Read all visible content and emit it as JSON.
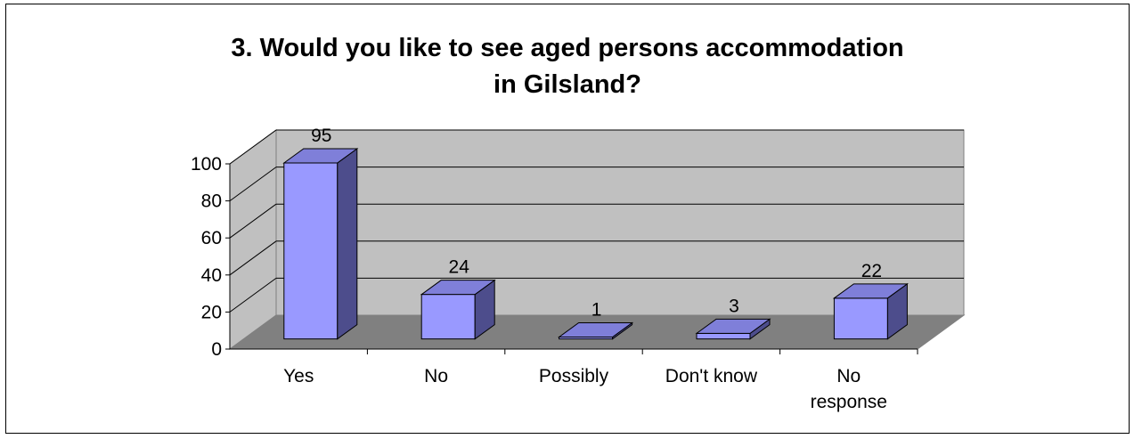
{
  "chart_data": {
    "type": "bar",
    "title_lines": [
      "3.  Would you like to see aged persons accommodation",
      "in Gilsland?"
    ],
    "categories": [
      "Yes",
      "No",
      "Possibly",
      "Don't know",
      "No response"
    ],
    "category_label_lines": [
      [
        "Yes"
      ],
      [
        "No"
      ],
      [
        "Possibly"
      ],
      [
        "Don't know"
      ],
      [
        "No",
        "response"
      ]
    ],
    "values": [
      95,
      24,
      1,
      3,
      22
    ],
    "data_labels": [
      "95",
      "24",
      "1",
      "3",
      "22"
    ],
    "ylim": [
      0,
      100
    ],
    "yticks": [
      0,
      20,
      40,
      60,
      80,
      100
    ],
    "ytick_labels": [
      "0",
      "20",
      "40",
      "60",
      "80",
      "100"
    ],
    "xlabel": "",
    "ylabel": "",
    "grid": true,
    "legend": "none",
    "three_d": true,
    "colors": {
      "bar_front": "#9999ff",
      "bar_side": "#4d4d8c",
      "bar_top": "#7f7fd9",
      "back_wall": "#c0c0c0",
      "side_wall": "#c0c0c0",
      "floor": "#808080",
      "gridline": "#000000"
    }
  }
}
